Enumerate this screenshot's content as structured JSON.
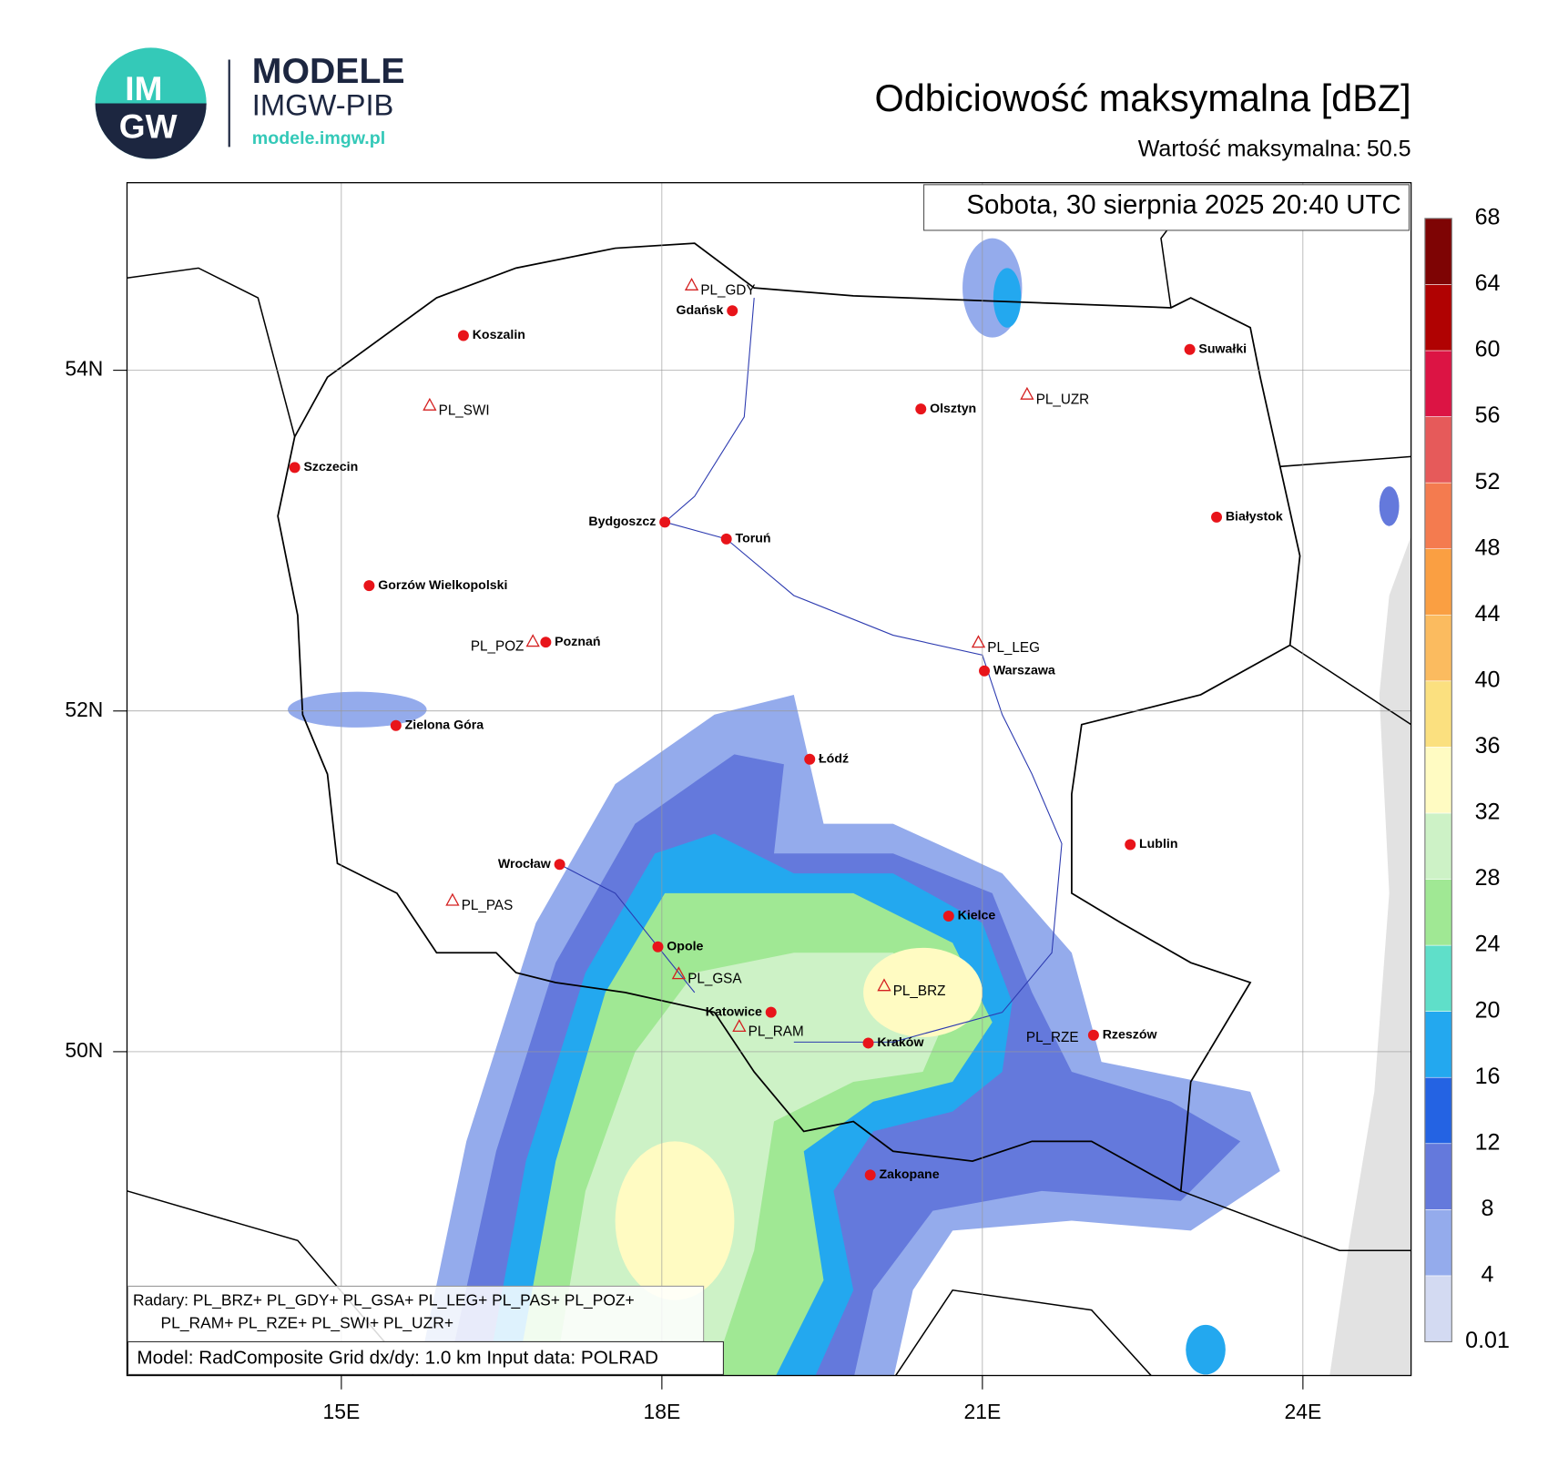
{
  "logo": {
    "mark_top": "IM",
    "mark_bottom": "GW",
    "name": "MODELE",
    "org": "IMGW-PIB",
    "url": "modele.imgw.pl"
  },
  "map": {
    "title": "Odbiciowość maksymalna [dBZ]",
    "max_label": "Wartość maksymalna:",
    "max_value": 50.5,
    "date": "Sobota, 30 sierpnia 2025 20:40 UTC",
    "lon_ticks": [
      {
        "value": 15,
        "label": "15E"
      },
      {
        "value": 18,
        "label": "18E"
      },
      {
        "value": 21,
        "label": "21E"
      },
      {
        "value": 24,
        "label": "24E"
      }
    ],
    "lat_ticks": [
      {
        "value": 54,
        "label": "54N"
      },
      {
        "value": 52,
        "label": "52N"
      },
      {
        "value": 50,
        "label": "50N"
      }
    ],
    "colorbar": {
      "levels": [
        0.01,
        4,
        8,
        12,
        16,
        20,
        24,
        28,
        32,
        36,
        40,
        44,
        48,
        52,
        56,
        60,
        64,
        68
      ],
      "colors": [
        "#d3daf2",
        "#94abec",
        "#6479dc",
        "#2463e3",
        "#23a8ef",
        "#5fdfc9",
        "#a0e894",
        "#cdf2c6",
        "#fffbc2",
        "#fbe07f",
        "#fbbb5f",
        "#fa9f42",
        "#f47b4f",
        "#e65a5a",
        "#dc1444",
        "#b00202",
        "#7e0404"
      ]
    },
    "cities": [
      "Gdańsk",
      "Koszalin",
      "Szczecin",
      "Suwałki",
      "Olsztyn",
      "Bydgoszcz",
      "Toruń",
      "Białystok",
      "Gorzów Wielkopolski",
      "Poznań",
      "Warszawa",
      "Zielona Góra",
      "Łódź",
      "Lublin",
      "Wrocław",
      "Kielce",
      "Opole",
      "Katowice",
      "Kraków",
      "Rzeszów",
      "Zakopane"
    ],
    "radars": [
      "PL_GDY",
      "PL_SWI",
      "PL_UZR",
      "PL_POZ",
      "PL_LEG",
      "PL_PAS",
      "PL_GSA",
      "PL_BRZ",
      "PL_RAM",
      "PL_RZE"
    ],
    "radar_legend": [
      "Radary: PL_BRZ+  PL_GDY+  PL_GSA+  PL_LEG+  PL_PAS+  PL_POZ+",
      "PL_RAM+  PL_RZE+  PL_SWI+  PL_UZR+"
    ],
    "model_info": "Model: RadComposite   Grid dx/dy: 1.0 km   Input data: POLRAD"
  }
}
